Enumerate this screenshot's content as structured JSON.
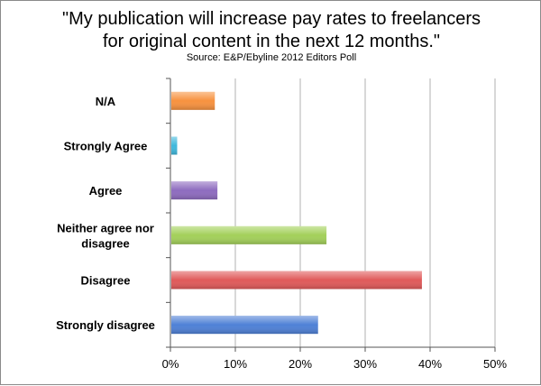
{
  "chart_data": {
    "type": "bar",
    "orientation": "horizontal",
    "title": "\"My publication will increase pay rates to freelancers for original content in the next 12 months.\"",
    "title_lines": [
      "\"My publication will increase pay rates to freelancers",
      "for original content in the next 12 months.\""
    ],
    "subtitle": "Source: E&P/Ebyline 2012 Editors Poll",
    "categories": [
      {
        "label_lines": [
          "N/A"
        ],
        "value": 6.7,
        "color": "#f7923f"
      },
      {
        "label_lines": [
          "Strongly Agree"
        ],
        "value": 0.9,
        "color": "#3fb8dc"
      },
      {
        "label_lines": [
          "Agree"
        ],
        "value": 7.1,
        "color": "#8e6bbf"
      },
      {
        "label_lines": [
          "Neither agree nor",
          "disagree"
        ],
        "value": 23.9,
        "color": "#a3d05a"
      },
      {
        "label_lines": [
          "Disagree"
        ],
        "value": 38.6,
        "color": "#e05a5a"
      },
      {
        "label_lines": [
          "Strongly disagree"
        ],
        "value": 22.6,
        "color": "#4f81d6"
      }
    ],
    "xlim": [
      0,
      50
    ],
    "xticks": [
      0,
      10,
      20,
      30,
      40,
      50
    ],
    "xtick_labels": [
      "0%",
      "10%",
      "20%",
      "30%",
      "40%",
      "50%"
    ],
    "grid": true,
    "grid_color": "#b0b0b0",
    "axis_color": "#555555"
  }
}
